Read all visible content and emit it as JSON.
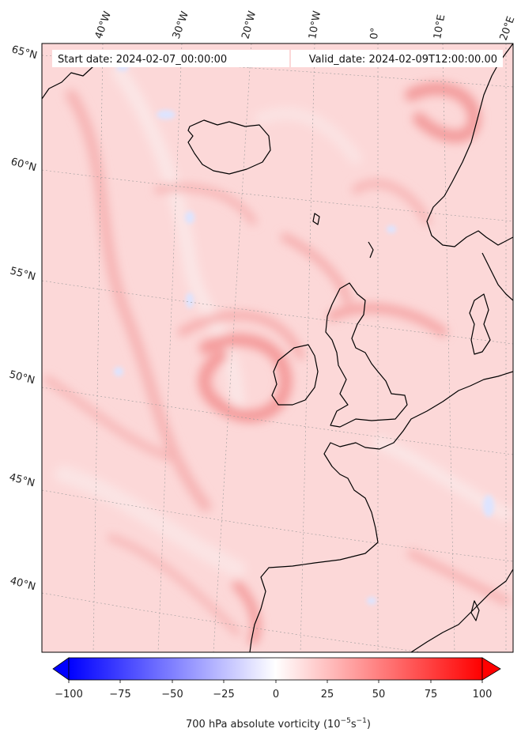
{
  "map": {
    "start_date": "Start date: 2024-02-07_00:00:00",
    "valid_date": "Valid_date: 2024-02-09T12:00:00.00"
  },
  "lon_labels": [
    "40°W",
    "30°W",
    "20°W",
    "10°W",
    "0°",
    "10°E",
    "20°E"
  ],
  "lat_labels": [
    "65°N",
    "60°N",
    "55°N",
    "50°N",
    "45°N",
    "40°N"
  ],
  "colorbar": {
    "ticks": [
      "−100",
      "−75",
      "−50",
      "−25",
      "0",
      "25",
      "50",
      "75",
      "100"
    ],
    "label_main": "700 hPa absolute vorticity (10",
    "label_sup1": "−5",
    "label_mid": "s",
    "label_sup2": "−1",
    "label_end": ")",
    "colors": {
      "min": "#0000ff",
      "mid": "#ffffff",
      "max": "#ff0000"
    }
  },
  "colors": {
    "field_base": "#fcd6d6",
    "field_strong": "#f7a8a8",
    "coast": "#000000",
    "grid": "#9a9a9a"
  }
}
